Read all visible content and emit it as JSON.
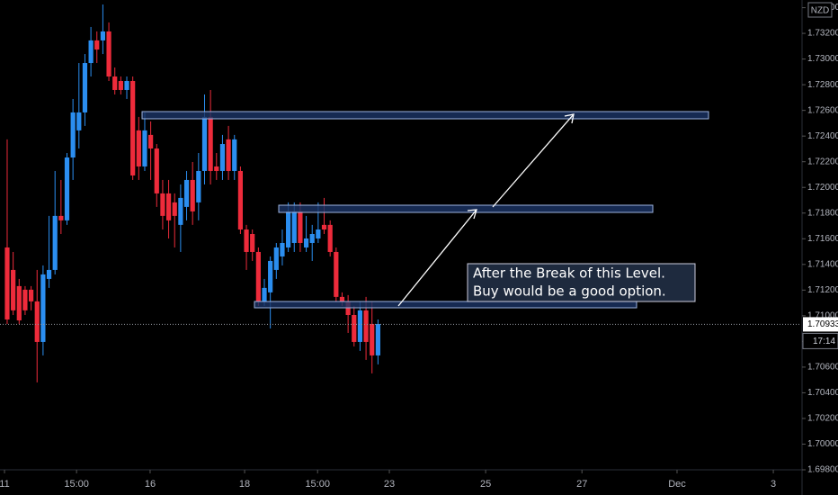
{
  "chart_data": {
    "type": "candlestick",
    "currency": "NZD",
    "last_price": 1.70933,
    "countdown": "17:14",
    "annotation": [
      "After the Break of this Level.",
      "Buy would be a good option."
    ],
    "up_color": "#2b8ef0",
    "down_color": "#ee2b3b",
    "open": [
      1.71532,
      1.71357,
      1.71231,
      1.71203,
      1.71203,
      1.71112,
      1.70796,
      1.71287,
      1.71357,
      1.71778,
      1.71743,
      1.72233,
      1.72444,
      1.72584,
      1.72969,
      1.73145,
      1.73145,
      1.73215,
      1.72864,
      1.72829,
      1.72759,
      1.72829,
      1.72444,
      1.72163,
      1.72409,
      1.72303,
      1.71953,
      1.71953,
      1.71883,
      1.71708,
      1.71848,
      1.72058,
      1.71883,
      1.72128,
      1.72549,
      1.72163,
      1.72128,
      1.72374,
      1.72128,
      1.72128,
      1.71672,
      1.71637,
      1.71497,
      1.71112,
      1.71182,
      1.71357,
      1.71462,
      1.71532,
      1.71567,
      1.71813,
      1.71532,
      1.71567,
      1.71602,
      1.71708,
      1.71708,
      1.71497,
      1.71147,
      1.71112,
      1.71006,
      1.70796,
      1.71042,
      1.70936,
      1.70691
    ],
    "high": [
      1.72374,
      1.71497,
      1.71287,
      1.71231,
      1.71231,
      1.71357,
      1.71392,
      1.71778,
      1.72128,
      1.72058,
      1.72268,
      1.72689,
      1.72969,
      1.73039,
      1.7325,
      1.73215,
      1.73425,
      1.73285,
      1.72934,
      1.72864,
      1.72864,
      1.72864,
      1.72549,
      1.72584,
      1.72514,
      1.72338,
      1.72058,
      1.72058,
      1.71953,
      1.72023,
      1.72128,
      1.72198,
      1.72268,
      1.72724,
      1.72759,
      1.72268,
      1.72409,
      1.72479,
      1.72409,
      1.72163,
      1.71708,
      1.71672,
      1.71532,
      1.71287,
      1.71462,
      1.71567,
      1.71672,
      1.71883,
      1.71883,
      1.71883,
      1.71778,
      1.71708,
      1.71883,
      1.71918,
      1.71743,
      1.71532,
      1.71182,
      1.71161,
      1.71077,
      1.71112,
      1.71147,
      1.71112,
      1.70971
    ],
    "low": [
      1.70936,
      1.71006,
      1.70936,
      1.71006,
      1.71042,
      1.70481,
      1.70691,
      1.71217,
      1.71322,
      1.71637,
      1.71708,
      1.72058,
      1.72303,
      1.72479,
      1.72864,
      1.72969,
      1.73039,
      1.72829,
      1.72724,
      1.72724,
      1.72689,
      1.72058,
      1.72058,
      1.72128,
      1.72058,
      1.71848,
      1.71672,
      1.71602,
      1.71532,
      1.71497,
      1.71743,
      1.71708,
      1.71743,
      1.72023,
      1.72023,
      1.72058,
      1.72058,
      1.72058,
      1.72058,
      1.71637,
      1.71357,
      1.71427,
      1.71077,
      1.71077,
      1.70901,
      1.71287,
      1.71392,
      1.71497,
      1.71497,
      1.71497,
      1.71497,
      1.71427,
      1.71567,
      1.71637,
      1.71462,
      1.71112,
      1.71077,
      1.70866,
      1.70761,
      1.70726,
      1.70656,
      1.70551,
      1.70621
    ],
    "close": [
      1.70971,
      1.71042,
      1.70964,
      1.71042,
      1.71112,
      1.70796,
      1.71322,
      1.71357,
      1.71778,
      1.71743,
      1.72233,
      1.72584,
      1.72584,
      1.72969,
      1.73145,
      1.73074,
      1.73215,
      1.72864,
      1.72759,
      1.72759,
      1.72829,
      1.72093,
      1.72163,
      1.72444,
      1.72303,
      1.71953,
      1.71778,
      1.71743,
      1.71778,
      1.71918,
      1.72058,
      1.71813,
      1.72128,
      1.72549,
      1.72128,
      1.72128,
      1.72338,
      1.72128,
      1.72374,
      1.71672,
      1.71497,
      1.71497,
      1.71112,
      1.71217,
      1.71427,
      1.71532,
      1.71567,
      1.71813,
      1.71813,
      1.71567,
      1.71602,
      1.71637,
      1.71672,
      1.71672,
      1.71497,
      1.71147,
      1.71112,
      1.71006,
      1.70796,
      1.71042,
      1.70796,
      1.70691,
      1.70936
    ],
    "xlim": [
      -1.2,
      132.6
    ],
    "xticks": [
      {
        "value": -0.45,
        "label": "11"
      },
      {
        "value": 11.6,
        "label": "15:00"
      },
      {
        "value": 23.9,
        "label": "16"
      },
      {
        "value": 39.7,
        "label": "18"
      },
      {
        "value": 51.9,
        "label": "15:00"
      },
      {
        "value": 63.9,
        "label": "23"
      },
      {
        "value": 80,
        "label": "25"
      },
      {
        "value": 96.1,
        "label": "27"
      },
      {
        "value": 112,
        "label": "Dec"
      },
      {
        "value": 128.1,
        "label": "3"
      }
    ],
    "ylim": [
      1.698,
      1.7346
    ],
    "yticks": [
      {
        "value": 1.698,
        "label": "1.69800"
      },
      {
        "value": 1.7,
        "label": "1.70000"
      },
      {
        "value": 1.702,
        "label": "1.70200"
      },
      {
        "value": 1.704,
        "label": "1.70400"
      },
      {
        "value": 1.706,
        "label": "1.70600"
      },
      {
        "value": 1.708,
        "label": "1.70800"
      },
      {
        "value": 1.71,
        "label": "1.71000"
      },
      {
        "value": 1.712,
        "label": "1.71200"
      },
      {
        "value": 1.714,
        "label": "1.71400"
      },
      {
        "value": 1.716,
        "label": "1.71600"
      },
      {
        "value": 1.718,
        "label": "1.71800"
      },
      {
        "value": 1.72,
        "label": "1.72000"
      },
      {
        "value": 1.722,
        "label": "1.72200"
      },
      {
        "value": 1.724,
        "label": "1.72400"
      },
      {
        "value": 1.726,
        "label": "1.72600"
      },
      {
        "value": 1.728,
        "label": "1.72800"
      },
      {
        "value": 1.73,
        "label": "1.73000"
      },
      {
        "value": 1.732,
        "label": "1.73200"
      },
      {
        "value": 1.734,
        "label": "1.73400"
      }
    ]
  }
}
